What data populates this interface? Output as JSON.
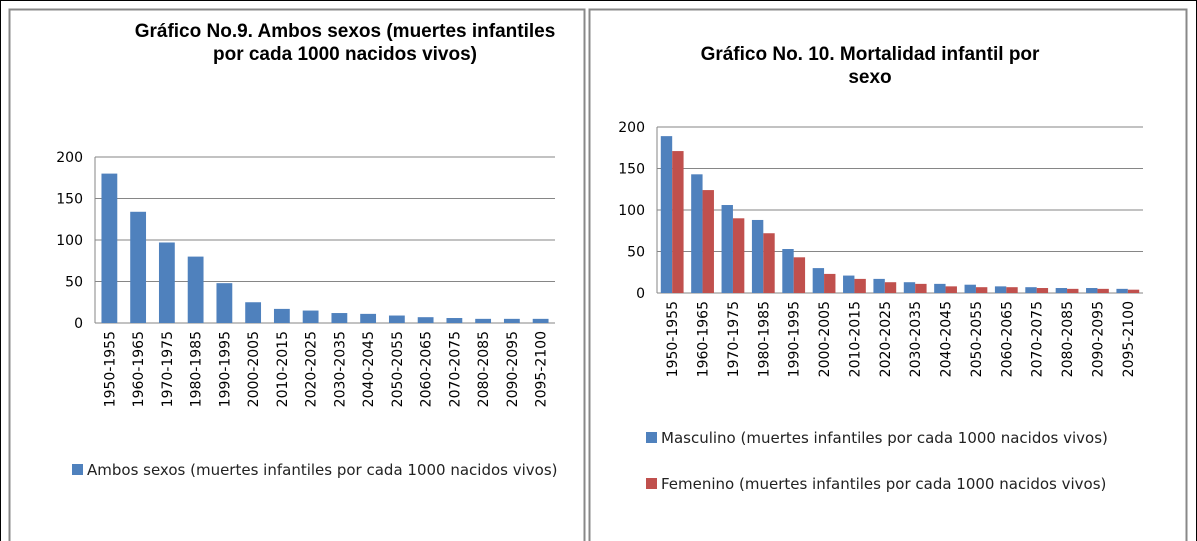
{
  "chart_data": [
    {
      "type": "bar",
      "title": "Gráfico No.9. Ambos sexos (muertes infantiles por cada 1000 nacidos vivos)",
      "categories": [
        "1950-1955",
        "1960-1965",
        "1970-1975",
        "1980-1985",
        "1990-1995",
        "2000-2005",
        "2010-2015",
        "2020-2025",
        "2030-2035",
        "2040-2045",
        "2050-2055",
        "2060-2065",
        "2070-2075",
        "2080-2085",
        "2090-2095",
        "2095-2100"
      ],
      "series": [
        {
          "name": "Ambos sexos (muertes infantiles por cada 1000 nacidos vivos)",
          "color": "#4f81bd",
          "values": [
            180,
            134,
            97,
            80,
            48,
            25,
            17,
            15,
            12,
            11,
            9,
            7,
            6,
            5,
            5,
            5
          ]
        }
      ],
      "ylim": [
        0,
        200
      ],
      "yticks": [
        0,
        50,
        100,
        150,
        200
      ],
      "grid": true,
      "legend": "bottom"
    },
    {
      "type": "bar",
      "title": "Gráfico No. 10. Mortalidad infantil por sexo",
      "categories": [
        "1950-1955",
        "1960-1965",
        "1970-1975",
        "1980-1985",
        "1990-1995",
        "2000-2005",
        "2010-2015",
        "2020-2025",
        "2030-2035",
        "2040-2045",
        "2050-2055",
        "2060-2065",
        "2070-2075",
        "2080-2085",
        "2090-2095",
        "2095-2100"
      ],
      "series": [
        {
          "name": "Masculino (muertes infantiles por cada 1000 nacidos vivos)",
          "color": "#4f81bd",
          "values": [
            189,
            143,
            106,
            88,
            53,
            30,
            21,
            17,
            13,
            11,
            10,
            8,
            7,
            6,
            6,
            5
          ]
        },
        {
          "name": "Femenino (muertes infantiles por cada 1000 nacidos vivos)",
          "color": "#c0504d",
          "values": [
            171,
            124,
            90,
            72,
            43,
            23,
            17,
            13,
            11,
            8,
            7,
            7,
            6,
            5,
            5,
            4
          ]
        }
      ],
      "ylim": [
        0,
        200
      ],
      "yticks": [
        0,
        50,
        100,
        150,
        200
      ],
      "grid": true,
      "legend": "bottom"
    }
  ]
}
